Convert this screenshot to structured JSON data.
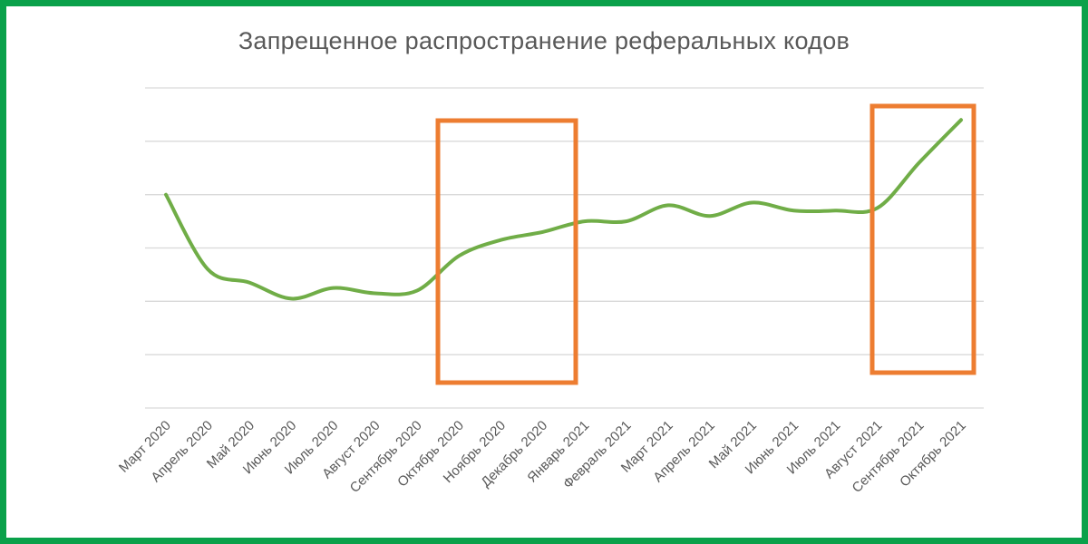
{
  "chart_data": {
    "type": "line",
    "title": "Запрещенное распространение реферальных кодов",
    "xlabel": "",
    "ylabel": "",
    "categories": [
      "Март 2020",
      "Апрель 2020",
      "Май 2020",
      "Июнь 2020",
      "Июль 2020",
      "Август 2020",
      "Сентябрь 2020",
      "Октябрь 2020",
      "Ноябрь 2020",
      "Декабрь 2020",
      "Январь 2021",
      "Февраль 2021",
      "Март 2021",
      "Апрель 2021",
      "Май 2021",
      "Июнь 2021",
      "Июль 2021",
      "Август 2021",
      "Сентябрь 2021",
      "Октябрь 2021"
    ],
    "series": [
      {
        "values": [
          4.0,
          2.6,
          2.35,
          2.05,
          2.25,
          2.15,
          2.2,
          2.85,
          3.15,
          3.3,
          3.5,
          3.5,
          3.8,
          3.6,
          3.85,
          3.7,
          3.7,
          3.75,
          4.6,
          5.4
        ]
      }
    ],
    "ylim": [
      0,
      6
    ],
    "y_gridlines": 6,
    "y_tick_labels_shown": false,
    "grid": true,
    "legend": "none",
    "highlight_ranges": [
      {
        "from": "Октябрь 2020",
        "to": "Январь 2021"
      },
      {
        "from": "Сентябрь 2021",
        "to": "Октябрь 2021"
      }
    ],
    "colors": {
      "line": "#70ad47",
      "highlight": "#ed7d31",
      "grid": "#d9d9d9",
      "frame": "#0aa14a"
    }
  }
}
